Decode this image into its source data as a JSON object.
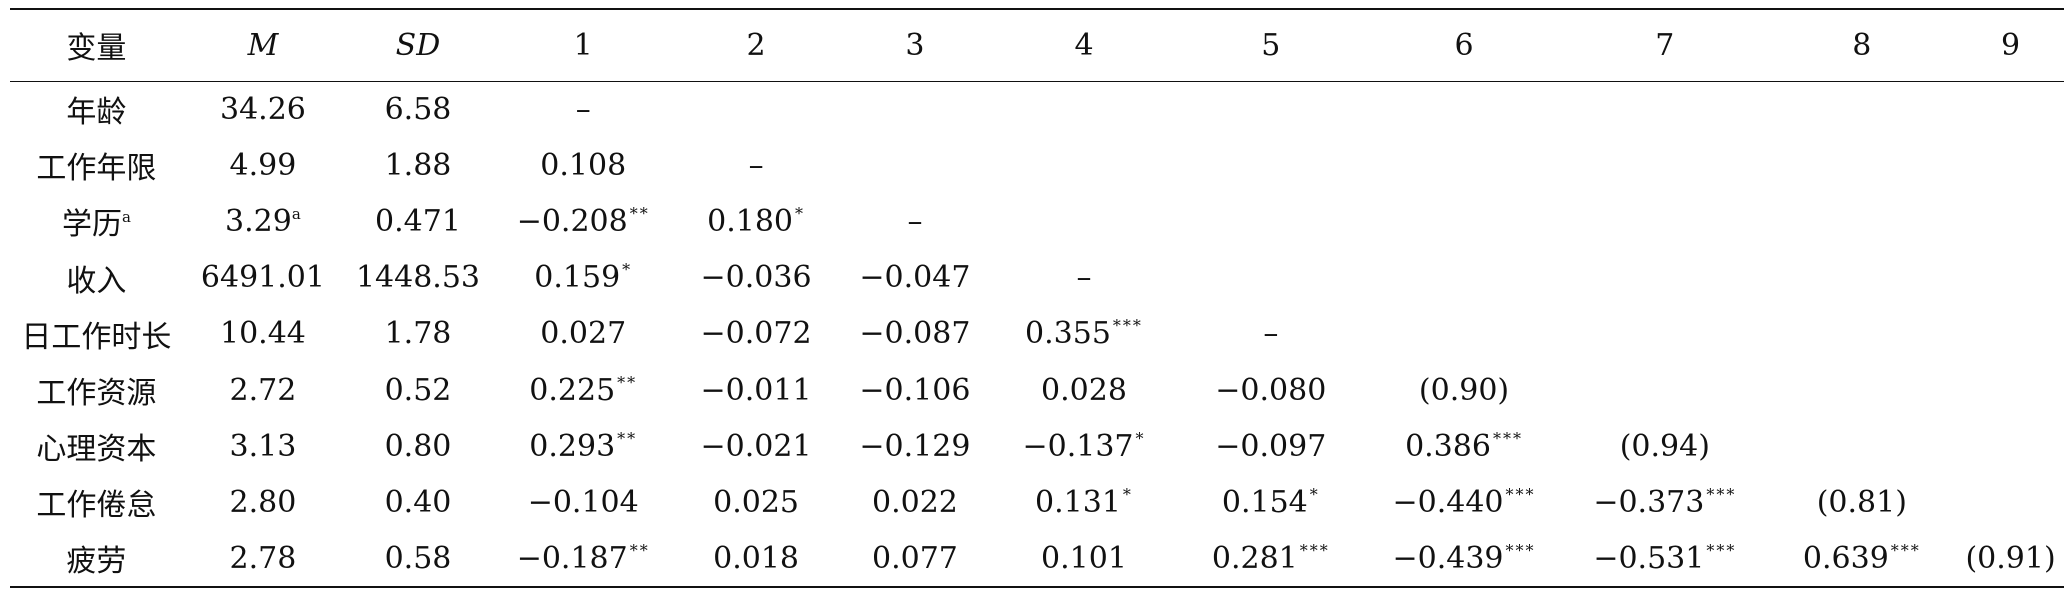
{
  "table": {
    "headers": [
      "变量",
      "M",
      "SD",
      "1",
      "2",
      "3",
      "4",
      "5",
      "6",
      "7",
      "8",
      "9"
    ],
    "rows": [
      {
        "cells": [
          {
            "v": "年龄"
          },
          {
            "v": "34.26"
          },
          {
            "v": "6.58"
          },
          {
            "v": "–"
          },
          {
            "v": ""
          },
          {
            "v": ""
          },
          {
            "v": ""
          },
          {
            "v": ""
          },
          {
            "v": ""
          },
          {
            "v": ""
          },
          {
            "v": ""
          },
          {
            "v": ""
          }
        ]
      },
      {
        "cells": [
          {
            "v": "工作年限"
          },
          {
            "v": "4.99"
          },
          {
            "v": "1.88"
          },
          {
            "v": "0.108"
          },
          {
            "v": "–"
          },
          {
            "v": ""
          },
          {
            "v": ""
          },
          {
            "v": ""
          },
          {
            "v": ""
          },
          {
            "v": ""
          },
          {
            "v": ""
          },
          {
            "v": ""
          }
        ]
      },
      {
        "cells": [
          {
            "v": "学历",
            "sup": "a"
          },
          {
            "v": "3.29",
            "sup": "a"
          },
          {
            "v": "0.471"
          },
          {
            "v": "−0.208",
            "sup": "**"
          },
          {
            "v": "0.180",
            "sup": "*"
          },
          {
            "v": "–"
          },
          {
            "v": ""
          },
          {
            "v": ""
          },
          {
            "v": ""
          },
          {
            "v": ""
          },
          {
            "v": ""
          },
          {
            "v": ""
          }
        ]
      },
      {
        "cells": [
          {
            "v": "收入"
          },
          {
            "v": "6491.01"
          },
          {
            "v": "1448.53"
          },
          {
            "v": "0.159",
            "sup": "*"
          },
          {
            "v": "−0.036"
          },
          {
            "v": "−0.047"
          },
          {
            "v": "–"
          },
          {
            "v": ""
          },
          {
            "v": ""
          },
          {
            "v": ""
          },
          {
            "v": ""
          },
          {
            "v": ""
          }
        ]
      },
      {
        "cells": [
          {
            "v": "日工作时长"
          },
          {
            "v": "10.44"
          },
          {
            "v": "1.78"
          },
          {
            "v": "0.027"
          },
          {
            "v": "−0.072"
          },
          {
            "v": "−0.087"
          },
          {
            "v": "0.355",
            "sup": "***"
          },
          {
            "v": "–"
          },
          {
            "v": ""
          },
          {
            "v": ""
          },
          {
            "v": ""
          },
          {
            "v": ""
          }
        ]
      },
      {
        "cells": [
          {
            "v": "工作资源"
          },
          {
            "v": "2.72"
          },
          {
            "v": "0.52"
          },
          {
            "v": "0.225",
            "sup": "**"
          },
          {
            "v": "−0.011"
          },
          {
            "v": "−0.106"
          },
          {
            "v": "0.028"
          },
          {
            "v": "−0.080"
          },
          {
            "v": "(0.90)"
          },
          {
            "v": ""
          },
          {
            "v": ""
          },
          {
            "v": ""
          }
        ]
      },
      {
        "cells": [
          {
            "v": "心理资本"
          },
          {
            "v": "3.13"
          },
          {
            "v": "0.80"
          },
          {
            "v": "0.293",
            "sup": "**"
          },
          {
            "v": "−0.021"
          },
          {
            "v": "−0.129"
          },
          {
            "v": "−0.137",
            "sup": "*"
          },
          {
            "v": "−0.097"
          },
          {
            "v": "0.386",
            "sup": "***"
          },
          {
            "v": "(0.94)"
          },
          {
            "v": ""
          },
          {
            "v": ""
          }
        ]
      },
      {
        "cells": [
          {
            "v": "工作倦怠"
          },
          {
            "v": "2.80"
          },
          {
            "v": "0.40"
          },
          {
            "v": "−0.104"
          },
          {
            "v": "0.025"
          },
          {
            "v": "0.022"
          },
          {
            "v": "0.131",
            "sup": "*"
          },
          {
            "v": "0.154",
            "sup": "*"
          },
          {
            "v": "−0.440",
            "sup": "***"
          },
          {
            "v": "−0.373",
            "sup": "***"
          },
          {
            "v": "(0.81)"
          },
          {
            "v": ""
          }
        ]
      },
      {
        "cells": [
          {
            "v": "疲劳"
          },
          {
            "v": "2.78"
          },
          {
            "v": "0.58"
          },
          {
            "v": "−0.187",
            "sup": "**"
          },
          {
            "v": "0.018"
          },
          {
            "v": "0.077"
          },
          {
            "v": "0.101"
          },
          {
            "v": "0.281",
            "sup": "***"
          },
          {
            "v": "−0.439",
            "sup": "***"
          },
          {
            "v": "−0.531",
            "sup": "***"
          },
          {
            "v": "0.639",
            "sup": "***"
          },
          {
            "v": "(0.91)"
          }
        ]
      }
    ]
  }
}
